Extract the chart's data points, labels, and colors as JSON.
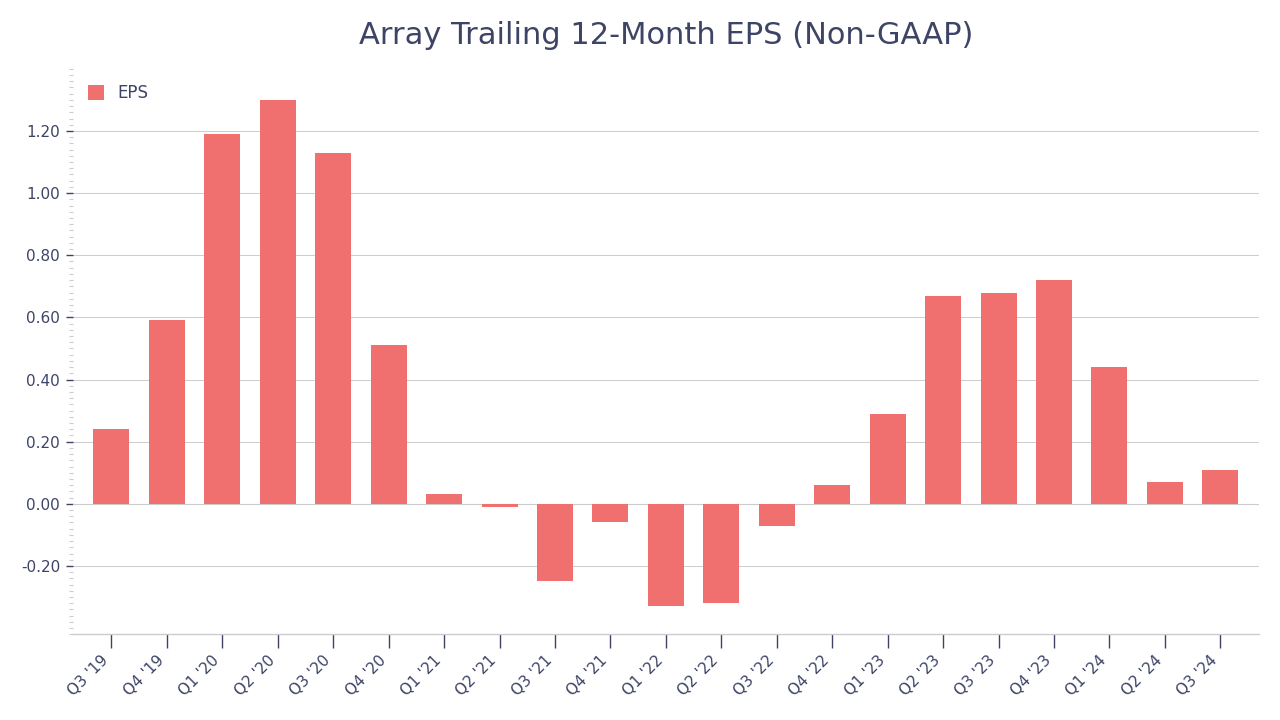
{
  "title": "Array Trailing 12-Month EPS (Non-GAAP)",
  "categories": [
    "Q3 '19",
    "Q4 '19",
    "Q1 '20",
    "Q2 '20",
    "Q3 '20",
    "Q4 '20",
    "Q1 '21",
    "Q2 '21",
    "Q3 '21",
    "Q4 '21",
    "Q1 '22",
    "Q2 '22",
    "Q3 '22",
    "Q4 '22",
    "Q1 '23",
    "Q2 '23",
    "Q3 '23",
    "Q4 '23",
    "Q1 '24",
    "Q2 '24",
    "Q3 '24"
  ],
  "values": [
    0.24,
    0.59,
    1.19,
    1.3,
    1.13,
    0.51,
    0.03,
    -0.01,
    -0.25,
    -0.06,
    -0.33,
    -0.32,
    -0.07,
    0.06,
    0.29,
    0.67,
    0.68,
    0.72,
    0.44,
    0.07,
    0.11
  ],
  "bar_color": "#F07070",
  "legend_label": "EPS",
  "ylim": [
    -0.42,
    1.4
  ],
  "yticks_major": [
    -0.2,
    0.0,
    0.2,
    0.4,
    0.6,
    0.8,
    1.0,
    1.2
  ],
  "background_color": "#ffffff",
  "title_fontsize": 22,
  "tick_fontsize": 11,
  "legend_fontsize": 12,
  "text_color": "#3d4466",
  "grid_color": "#cccccc"
}
